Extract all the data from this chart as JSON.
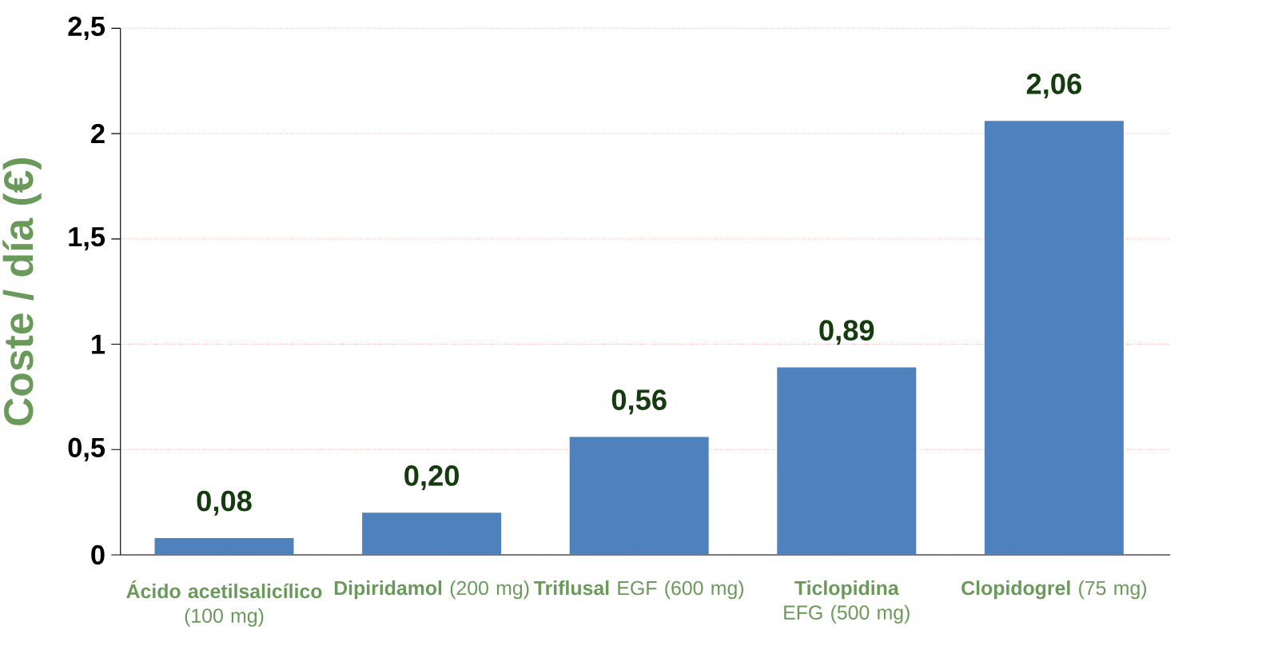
{
  "chart_data": {
    "type": "bar",
    "ylabel": "Coste / día  (€)",
    "categories": [
      "**Ácido acetilsalicílico** (100 mg)",
      "**Dipiridamol** (200 mg)",
      "**Triflusal** EGF (600 mg)",
      "**Ticlopidina** EFG (500 mg)",
      "**Clopidogrel** (75 mg)"
    ],
    "values": [
      0.08,
      0.2,
      0.56,
      0.89,
      2.06
    ],
    "value_labels": [
      "0,08",
      "0,20",
      "0,56",
      "0,89",
      "2,06"
    ],
    "color": "#4f81bd",
    "ylim": [
      0,
      2.5
    ],
    "yticks": [
      "0",
      {
        "value": 0.5,
        "label": "0,5"
      },
      "1",
      {
        "value": 1.5,
        "label": "1,5"
      },
      "2",
      {
        "value": 2.5,
        "label": "2,5"
      }
    ],
    "grid": "y"
  }
}
